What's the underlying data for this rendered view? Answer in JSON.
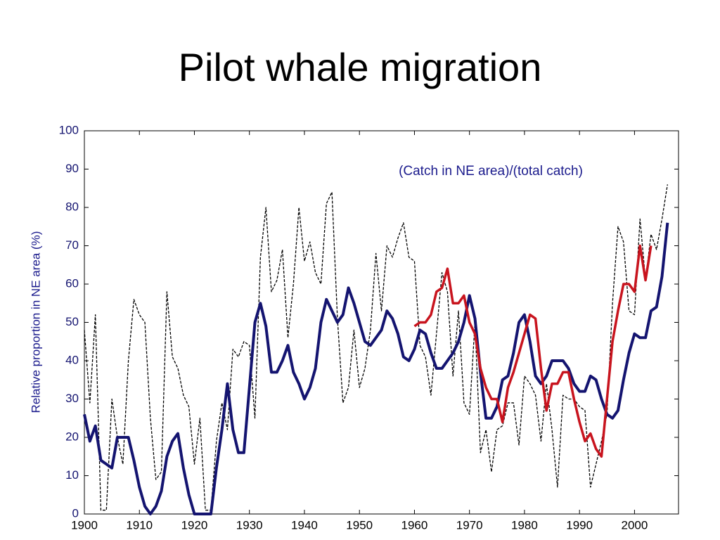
{
  "chart_data": {
    "type": "line",
    "title": "Pilot whale migration",
    "y_label": "Relative proportion in NE area (%)",
    "annotation": "(Catch in NE area)/(total catch)",
    "xlim": [
      1900,
      2008
    ],
    "xticks": [
      1900,
      1910,
      1920,
      1930,
      1940,
      1950,
      1960,
      1970,
      1980,
      1990,
      2000
    ],
    "ylim": [
      0,
      100
    ],
    "yticks": [
      0,
      10,
      20,
      30,
      40,
      50,
      60,
      70,
      80,
      90,
      100
    ],
    "grid": false,
    "x": [
      1900,
      1901,
      1902,
      1903,
      1904,
      1905,
      1906,
      1907,
      1908,
      1909,
      1910,
      1911,
      1912,
      1913,
      1914,
      1915,
      1916,
      1917,
      1918,
      1919,
      1920,
      1921,
      1922,
      1923,
      1924,
      1925,
      1926,
      1927,
      1928,
      1929,
      1930,
      1931,
      1932,
      1933,
      1934,
      1935,
      1936,
      1937,
      1938,
      1939,
      1940,
      1941,
      1942,
      1943,
      1944,
      1945,
      1946,
      1947,
      1948,
      1949,
      1950,
      1951,
      1952,
      1953,
      1954,
      1955,
      1956,
      1957,
      1958,
      1959,
      1960,
      1961,
      1962,
      1963,
      1964,
      1965,
      1966,
      1967,
      1968,
      1969,
      1970,
      1971,
      1972,
      1973,
      1974,
      1975,
      1976,
      1977,
      1978,
      1979,
      1980,
      1981,
      1982,
      1983,
      1984,
      1985,
      1986,
      1987,
      1988,
      1989,
      1990,
      1991,
      1992,
      1993,
      1994,
      1995,
      1996,
      1997,
      1998,
      1999,
      2000,
      2001,
      2002,
      2003,
      2004,
      2005,
      2006
    ],
    "series": [
      {
        "color": "#000000",
        "dashed": true,
        "width": 1.3,
        "values": [
          48,
          29,
          52,
          1,
          1,
          30,
          20,
          13,
          40,
          56,
          52,
          50,
          25,
          9,
          11,
          58,
          41,
          38,
          31,
          28,
          13,
          25,
          1,
          1,
          19,
          29,
          22,
          43,
          41,
          45,
          44,
          25,
          67,
          80,
          58,
          61,
          69,
          46,
          60,
          80,
          66,
          71,
          63,
          60,
          81,
          84,
          51,
          29,
          33,
          48,
          33,
          38,
          48,
          68,
          53,
          70,
          67,
          72,
          76,
          67,
          66,
          44,
          41,
          31,
          47,
          63,
          58,
          36,
          53,
          29,
          26,
          50,
          16,
          22,
          11,
          22,
          23,
          29,
          29,
          18,
          36,
          34,
          31,
          19,
          34,
          22,
          7,
          31,
          30,
          30,
          28,
          27,
          7,
          13,
          19,
          26,
          55,
          75,
          71,
          53,
          52,
          77,
          61,
          73,
          69,
          77,
          86
        ]
      },
      {
        "color": "#141470",
        "dashed": false,
        "width": 4,
        "values": [
          26,
          19,
          23,
          14,
          13,
          12,
          20,
          20,
          20,
          14,
          7,
          2,
          0,
          2,
          6,
          15,
          19,
          21,
          12,
          5,
          0,
          0,
          0,
          0,
          12,
          22,
          34,
          22,
          16,
          16,
          33,
          50,
          55,
          49,
          37,
          37,
          40,
          44,
          37,
          34,
          30,
          33,
          38,
          50,
          56,
          53,
          50,
          52,
          59,
          55,
          50,
          45,
          44,
          46,
          48,
          53,
          51,
          47,
          41,
          40,
          43,
          48,
          47,
          42,
          38,
          38,
          40,
          42,
          45,
          50,
          57,
          51,
          37,
          25,
          25,
          28,
          35,
          36,
          42,
          50,
          52,
          45,
          36,
          34,
          36,
          40,
          40,
          40,
          38,
          34,
          32,
          32,
          36,
          35,
          30,
          26,
          25,
          27,
          35,
          42,
          47,
          46,
          46,
          53,
          54,
          62,
          76
        ]
      },
      {
        "color": "#c8141e",
        "dashed": false,
        "width": 3.5,
        "values": [
          null,
          null,
          null,
          null,
          null,
          null,
          null,
          null,
          null,
          null,
          null,
          null,
          null,
          null,
          null,
          null,
          null,
          null,
          null,
          null,
          null,
          null,
          null,
          null,
          null,
          null,
          null,
          null,
          null,
          null,
          null,
          null,
          null,
          null,
          null,
          null,
          null,
          null,
          null,
          null,
          null,
          null,
          null,
          null,
          null,
          null,
          null,
          null,
          null,
          null,
          null,
          null,
          null,
          null,
          null,
          null,
          null,
          null,
          null,
          null,
          49,
          50,
          50,
          52,
          58,
          59,
          64,
          55,
          55,
          57,
          50,
          47,
          38,
          33,
          30,
          30,
          24,
          33,
          37,
          42,
          47,
          52,
          51,
          38,
          27,
          34,
          34,
          37,
          37,
          30,
          24,
          19,
          21,
          17,
          15,
          30,
          45,
          53,
          60,
          60,
          58,
          70,
          61,
          70,
          null,
          null,
          null
        ]
      }
    ]
  }
}
